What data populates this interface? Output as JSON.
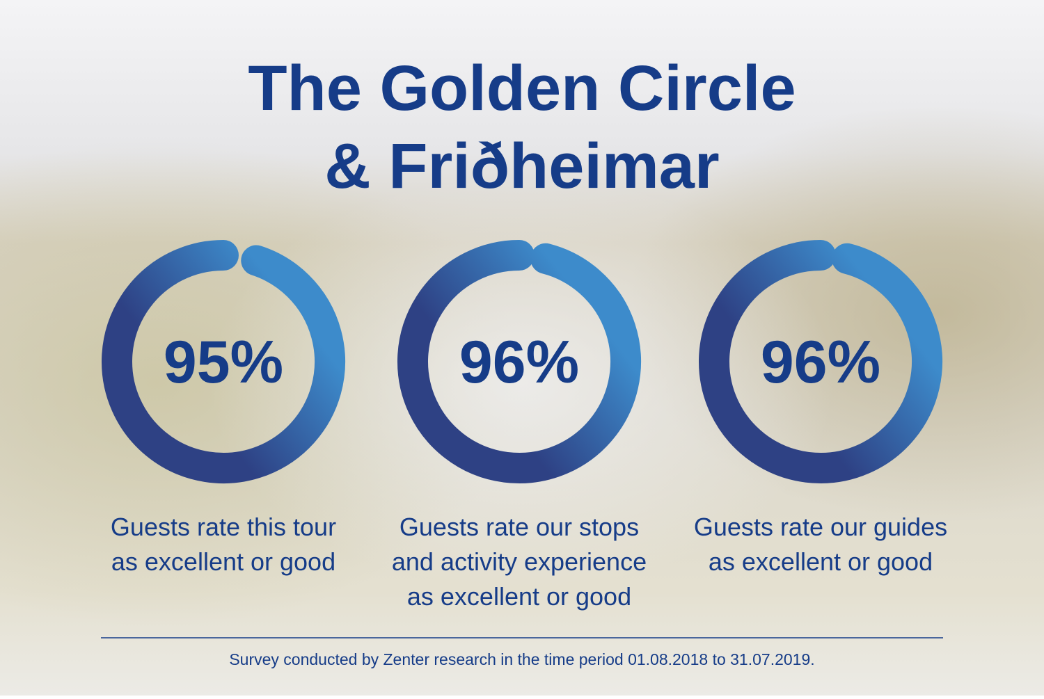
{
  "header": {
    "title": [
      "The Golden Circle",
      "& Friðheimar"
    ]
  },
  "chart_data": [
    {
      "type": "donut",
      "values": [
        95
      ],
      "value_labels": [
        "95%"
      ],
      "ylim": [
        0,
        100
      ],
      "caption": [
        "Guests rate this tour",
        "as excellent or good"
      ],
      "colors": [
        "#3d8bcb",
        "#2e4184"
      ]
    },
    {
      "type": "donut",
      "values": [
        96
      ],
      "value_labels": [
        "96%"
      ],
      "ylim": [
        0,
        100
      ],
      "caption": [
        "Guests rate our stops",
        "and activity experience",
        "as excellent or good"
      ],
      "colors": [
        "#3d8bcb",
        "#2e4184"
      ]
    },
    {
      "type": "donut",
      "values": [
        96
      ],
      "value_labels": [
        "96%"
      ],
      "ylim": [
        0,
        100
      ],
      "caption": [
        "Guests rate our guides",
        "as excellent or good"
      ],
      "colors": [
        "#3d8bcb",
        "#2e4184"
      ]
    }
  ],
  "footer": {
    "note": "Survey conducted by Zenter research in the time period 01.08.2018 to 31.07.2019."
  }
}
